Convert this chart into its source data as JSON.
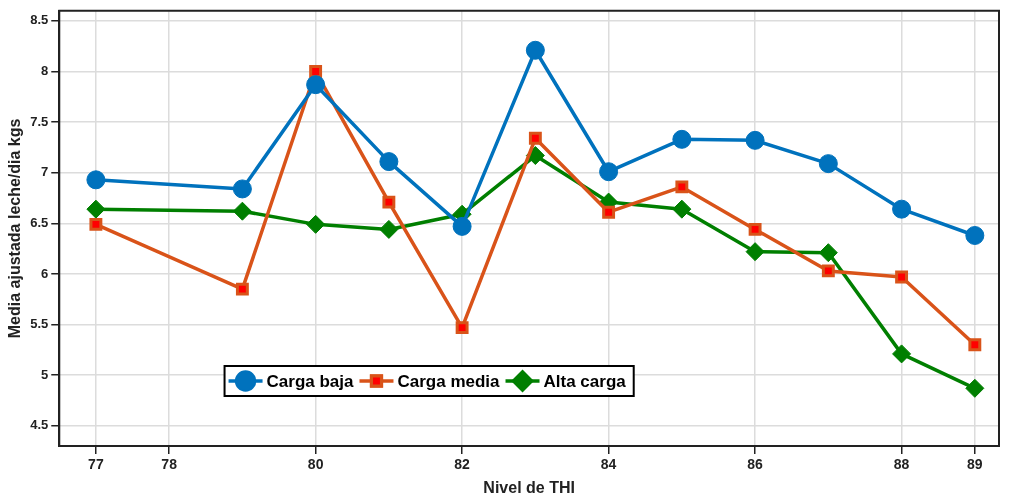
{
  "chart_data": {
    "type": "line",
    "xlabel": "Nivel de THI",
    "ylabel": "Media ajustada leche/dia kgs",
    "x": [
      77,
      79,
      80,
      81,
      82,
      83,
      84,
      85,
      86,
      87,
      88,
      89
    ],
    "series": [
      {
        "name": "Carga baja",
        "color": "#0072bd",
        "marker": "circle",
        "values": [
          6.93,
          6.84,
          7.87,
          7.11,
          6.47,
          8.21,
          7.01,
          7.33,
          7.32,
          7.09,
          6.64,
          6.38
        ]
      },
      {
        "name": "Carga media",
        "color": "#d95319",
        "marker": "square",
        "values": [
          6.49,
          5.85,
          8.0,
          6.71,
          5.47,
          7.34,
          6.61,
          6.86,
          6.44,
          6.03,
          5.97,
          5.3
        ]
      },
      {
        "name": "Alta carga",
        "color": "#007f00",
        "marker": "diamond",
        "values": [
          6.64,
          6.62,
          6.49,
          6.44,
          6.59,
          7.17,
          6.71,
          6.64,
          6.22,
          6.21,
          5.21,
          4.87
        ]
      }
    ],
    "xlim": [
      76.5,
      89.33
    ],
    "xticks": [
      77,
      78,
      80,
      82,
      84,
      86,
      88,
      89
    ],
    "ylim": [
      4.3,
      8.6
    ],
    "yticks": [
      4.5,
      5,
      5.5,
      6,
      6.5,
      7,
      7.5,
      8,
      8.5
    ],
    "grid": true,
    "legend": "bottom",
    "line_style": "solid"
  }
}
